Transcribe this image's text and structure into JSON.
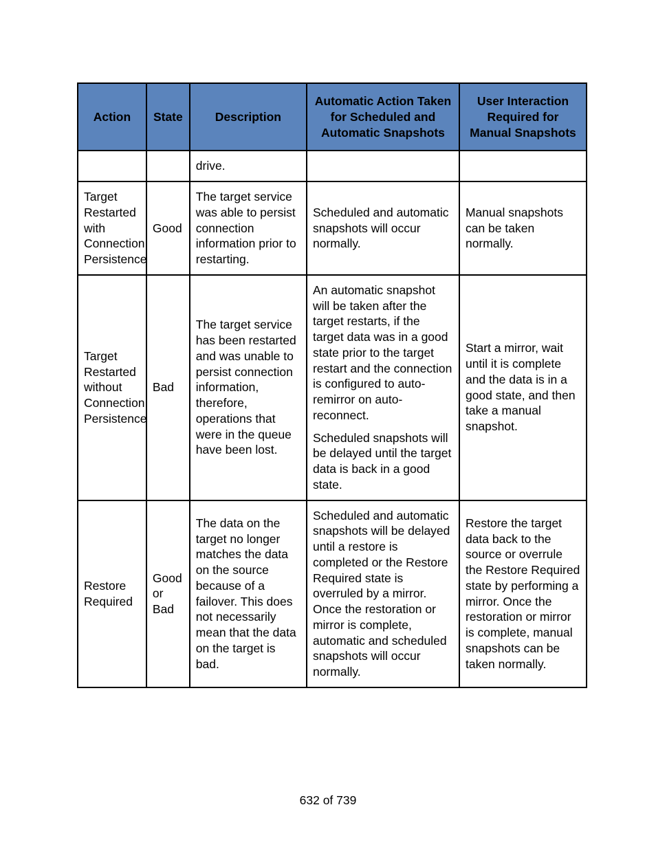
{
  "table": {
    "header_bg": "#5b84bc",
    "border_color": "#000000",
    "text_color": "#000000",
    "font_family": "Arial",
    "header_fontsize": 17.5,
    "cell_fontsize": 17.5,
    "columns": [
      {
        "label": "Action",
        "width_pct": 13.5
      },
      {
        "label": "State",
        "width_pct": 8.5
      },
      {
        "label": "Description",
        "width_pct": 23
      },
      {
        "label": "Automatic Action Taken for Scheduled and Automatic Snapshots",
        "width_pct": 30
      },
      {
        "label": "User Interaction Required for Manual Snapshots",
        "width_pct": 25
      }
    ],
    "rows": [
      {
        "action": "",
        "state": "",
        "description": "drive.",
        "automatic": "",
        "user": ""
      },
      {
        "action": "Target Restarted with Connection Persistence",
        "state": "Good",
        "description": "The target service was able to persist connection information prior to restarting.",
        "automatic": "Scheduled and automatic snapshots will occur normally.",
        "user": "Manual snapshots can be taken normally."
      },
      {
        "action": "Target Restarted without Connection Persistence",
        "state": "Bad",
        "description": "The target service has been restarted and was unable to persist connection information, therefore, operations that were in the queue have been lost.",
        "automatic_parts": [
          "An automatic snapshot will be taken after the target restarts, if the target data was in a good state prior to the target restart and the connection is configured to auto-remirror on auto-reconnect.",
          "Scheduled snapshots will be delayed until the target data is back in a good state."
        ],
        "user": "Start a mirror, wait until it is complete and the data is in a good state, and then take a manual snapshot."
      },
      {
        "action": "Restore Required",
        "state": "Good or Bad",
        "description": "The data on the target no longer matches the data on the source because of a failover. This does not necessarily mean that the data on the target is bad.",
        "automatic": "Scheduled and automatic snapshots will be delayed until a restore is completed or the Restore Required state is overruled by a mirror. Once the restoration or mirror is complete, automatic and scheduled snapshots will occur normally.",
        "user": "Restore the target data back to the source or overrule the Restore Required state by performing a mirror. Once the restoration or mirror is complete, manual snapshots can be taken normally."
      }
    ]
  },
  "page_number": "632 of 739"
}
